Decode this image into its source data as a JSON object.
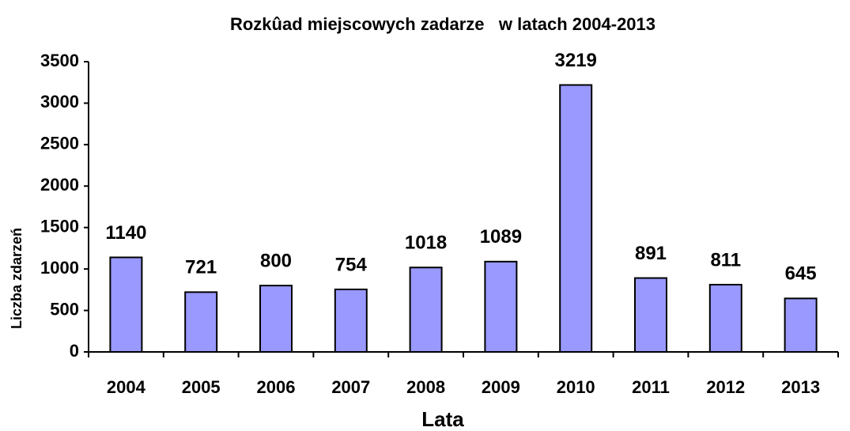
{
  "chart_data": {
    "type": "bar",
    "title": "Rozkûad miejscowych zadarze   w latach 2004-2013",
    "x_label": "Lata",
    "y_label": "Liczba zdarzeń",
    "categories": [
      "2004",
      "2005",
      "2006",
      "2007",
      "2008",
      "2009",
      "2010",
      "2011",
      "2012",
      "2013"
    ],
    "values": [
      1140,
      721,
      800,
      754,
      1018,
      1089,
      3219,
      891,
      811,
      645
    ],
    "color": "#9999ff",
    "ylim": [
      0,
      3500
    ],
    "yticks": [
      0,
      500,
      1000,
      1500,
      2000,
      2500,
      3000,
      3500
    ],
    "grid": false
  }
}
